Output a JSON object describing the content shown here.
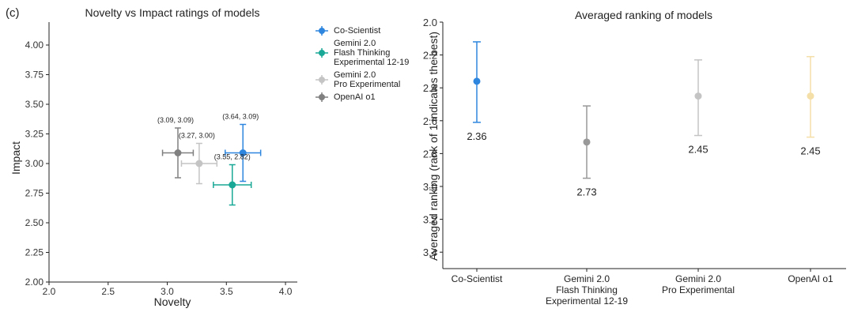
{
  "panel_label": "(c)",
  "chart_data": [
    {
      "type": "scatter",
      "title": "Novelty vs Impact ratings of models",
      "xlabel": "Novelty",
      "ylabel": "Impact",
      "xlim": [
        2.0,
        4.1
      ],
      "ylim": [
        2.0,
        4.1
      ],
      "xticks": [
        "2.0",
        "2.5",
        "3.0",
        "3.5",
        "4.0"
      ],
      "yticks": [
        "2.00",
        "2.25",
        "2.50",
        "2.75",
        "3.00",
        "3.25",
        "3.50",
        "3.75",
        "4.00"
      ],
      "legend_position": "outside-right",
      "legend": [
        {
          "label": "Co-Scientist",
          "color": "#2e86de"
        },
        {
          "label": "Gemini 2.0\nFlash Thinking\nExperimental 12-19",
          "color": "#1aa896"
        },
        {
          "label": "Gemini 2.0\nPro Experimental",
          "color": "#c4c4c4"
        },
        {
          "label": "OpenAI o1",
          "color": "#808080"
        }
      ],
      "points": [
        {
          "x": 3.64,
          "y": 3.09,
          "xerr": 0.15,
          "yerr": 0.24,
          "label": "(3.64, 3.09)",
          "color": "#2e86de"
        },
        {
          "x": 3.55,
          "y": 2.82,
          "xerr": 0.16,
          "yerr": 0.17,
          "label": "(3.55, 2.82)",
          "color": "#1aa896"
        },
        {
          "x": 3.27,
          "y": 3.0,
          "xerr": 0.15,
          "yerr": 0.17,
          "label": "(3.27, 3.00)",
          "color": "#c4c4c4"
        },
        {
          "x": 3.09,
          "y": 3.09,
          "xerr": 0.13,
          "yerr": 0.21,
          "label": "(3.09, 3.09)",
          "color": "#808080"
        }
      ]
    },
    {
      "type": "errorbar",
      "title": "Averaged ranking of models",
      "xlabel": "",
      "ylabel": "Averaged ranking (rank of 1 indicates the best)",
      "ylim": [
        3.5,
        2.0
      ],
      "y_inverted": true,
      "yticks": [
        "2.0",
        "2.2",
        "2.4",
        "2.6",
        "2.8",
        "3.0",
        "3.2",
        "3.4"
      ],
      "categories": [
        "Co-Scientist",
        "Gemini 2.0\nFlash Thinking\nExperimental 12-19",
        "Gemini 2.0\nPro Experimental",
        "OpenAI o1"
      ],
      "values": [
        2.36,
        2.73,
        2.45,
        2.45
      ],
      "lower": [
        2.12,
        2.51,
        2.23,
        2.21
      ],
      "upper": [
        2.61,
        2.95,
        2.69,
        2.7
      ],
      "value_labels": [
        "2.36",
        "2.73",
        "2.45",
        "2.45"
      ],
      "colors": [
        "#2e86de",
        "#999999",
        "#c4c4c4",
        "#f5dfa8"
      ]
    }
  ]
}
